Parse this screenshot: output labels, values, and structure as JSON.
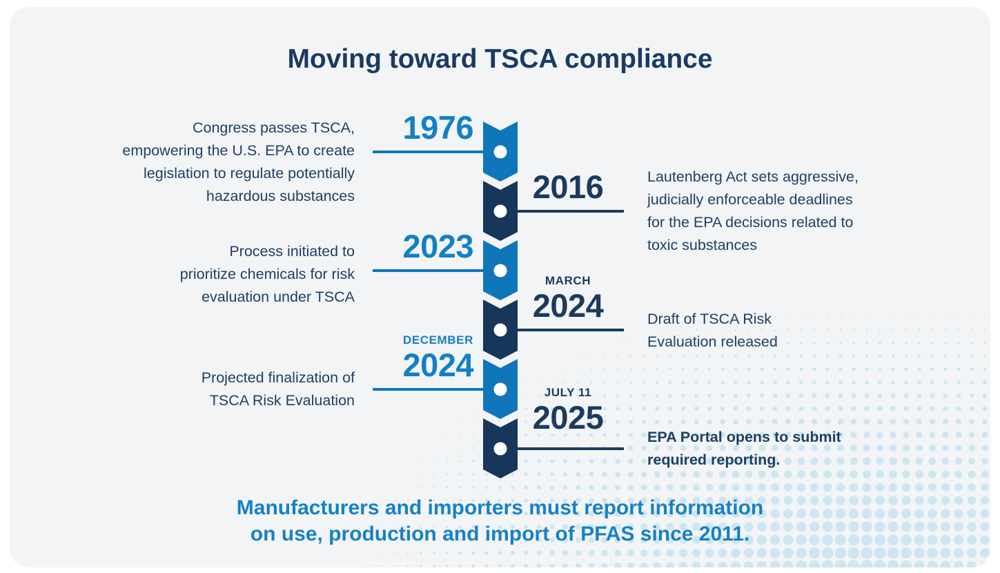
{
  "title": "Moving toward TSCA compliance",
  "footer": {
    "text": "Manufacturers and importers must report information\non use, production and import of PFAS since 2011."
  },
  "events": [
    {
      "side": "left",
      "label": "",
      "year": "1976",
      "desc": "Congress passes TSCA,\nempowering the U.S. EPA to create\nlegislation to regulate potentially\nhazardous substances"
    },
    {
      "side": "right",
      "label": "",
      "year": "2016",
      "desc": "Lautenberg Act sets aggressive,\njudicially enforceable deadlines\nfor the EPA decisions related to\ntoxic substances"
    },
    {
      "side": "left",
      "label": "",
      "year": "2023",
      "desc": "Process initiated to\nprioritize chemicals for risk\nevaluation under TSCA"
    },
    {
      "side": "right",
      "label": "MARCH",
      "year": "2024",
      "desc": "Draft of TSCA Risk\nEvaluation released"
    },
    {
      "side": "left",
      "label": "DECEMBER",
      "year": "2024",
      "desc": "Projected finalization of\nTSCA Risk Evaluation"
    },
    {
      "side": "right",
      "label": "JULY 11",
      "year": "2025",
      "desc": "EPA Portal opens to submit\nrequired reporting."
    }
  ],
  "colors": {
    "light_blue": "#0f76ba",
    "year_blue": "#1480c4",
    "dark_navy": "#16365a",
    "line_dark": "#1b3a5e",
    "text_navy": "#1e4063",
    "title_navy": "#1b3a63",
    "footer_blue": "#1681c7",
    "card_bg": "#f2f4f6",
    "halftone_dot": "#cde6f2",
    "marker_dot": "#ffffff"
  }
}
